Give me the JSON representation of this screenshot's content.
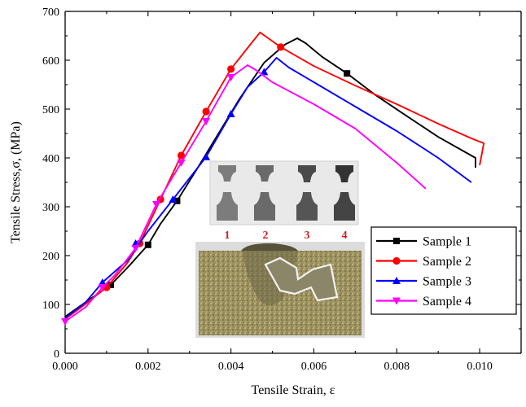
{
  "chart_data": {
    "type": "line",
    "xlabel": "Tensile Strain, ε",
    "ylabel": "Tensile Stress,σ, (MPa)",
    "xlim": [
      0.0,
      0.011
    ],
    "ylim": [
      0,
      700
    ],
    "x_ticks": [
      "0.000",
      "0.002",
      "0.004",
      "0.006",
      "0.008",
      "0.010"
    ],
    "x_tick_values": [
      0.0,
      0.002,
      0.004,
      0.006,
      0.008,
      0.01
    ],
    "y_ticks": [
      "0",
      "100",
      "200",
      "300",
      "400",
      "500",
      "600",
      "700"
    ],
    "y_tick_values": [
      0,
      100,
      200,
      300,
      400,
      500,
      600,
      700
    ],
    "grid": false,
    "legend_position": "lower-right",
    "series": [
      {
        "name": "Sample 1",
        "color": "#000000",
        "marker": "square",
        "points": [
          [
            0.0,
            75
          ],
          [
            0.0005,
            105
          ],
          [
            0.0011,
            140
          ],
          [
            0.0015,
            175
          ],
          [
            0.002,
            222
          ],
          [
            0.0023,
            265
          ],
          [
            0.0027,
            312
          ],
          [
            0.0032,
            380
          ],
          [
            0.0037,
            450
          ],
          [
            0.0042,
            520
          ],
          [
            0.0048,
            595
          ],
          [
            0.0053,
            632
          ],
          [
            0.0056,
            645
          ],
          [
            0.0058,
            635
          ],
          [
            0.0062,
            607
          ],
          [
            0.0068,
            573
          ],
          [
            0.0075,
            528
          ],
          [
            0.0082,
            488
          ],
          [
            0.009,
            443
          ],
          [
            0.0099,
            400
          ],
          [
            0.0099,
            380
          ]
        ],
        "markers": [
          [
            0.0011,
            140
          ],
          [
            0.002,
            222
          ],
          [
            0.0027,
            312
          ],
          [
            0.0068,
            573
          ]
        ]
      },
      {
        "name": "Sample 2",
        "color": "#ff0000",
        "marker": "circle",
        "points": [
          [
            0.0,
            70
          ],
          [
            0.0004,
            95
          ],
          [
            0.001,
            135
          ],
          [
            0.0015,
            185
          ],
          [
            0.0018,
            225
          ],
          [
            0.0023,
            315
          ],
          [
            0.0028,
            405
          ],
          [
            0.0034,
            495
          ],
          [
            0.004,
            582
          ],
          [
            0.0044,
            625
          ],
          [
            0.0047,
            657
          ],
          [
            0.0049,
            645
          ],
          [
            0.0052,
            627
          ],
          [
            0.006,
            588
          ],
          [
            0.007,
            548
          ],
          [
            0.008,
            510
          ],
          [
            0.009,
            470
          ],
          [
            0.0098,
            440
          ],
          [
            0.0101,
            430
          ],
          [
            0.01,
            385
          ]
        ],
        "markers": [
          [
            0.001,
            135
          ],
          [
            0.0018,
            225
          ],
          [
            0.0023,
            315
          ],
          [
            0.0028,
            405
          ],
          [
            0.0034,
            495
          ],
          [
            0.004,
            582
          ],
          [
            0.0052,
            627
          ]
        ]
      },
      {
        "name": "Sample 3",
        "color": "#0000ff",
        "marker": "triangle-up",
        "points": [
          [
            0.0,
            72
          ],
          [
            0.0005,
            105
          ],
          [
            0.0009,
            145
          ],
          [
            0.0015,
            190
          ],
          [
            0.002,
            250
          ],
          [
            0.0026,
            315
          ],
          [
            0.0034,
            402
          ],
          [
            0.004,
            490
          ],
          [
            0.0044,
            545
          ],
          [
            0.0048,
            576
          ],
          [
            0.0051,
            605
          ],
          [
            0.0054,
            585
          ],
          [
            0.006,
            555
          ],
          [
            0.007,
            505
          ],
          [
            0.008,
            455
          ],
          [
            0.009,
            400
          ],
          [
            0.0098,
            350
          ]
        ],
        "markers": [
          [
            0.0009,
            145
          ],
          [
            0.0017,
            225
          ],
          [
            0.0026,
            315
          ],
          [
            0.0034,
            402
          ],
          [
            0.004,
            490
          ],
          [
            0.0048,
            576
          ]
        ]
      },
      {
        "name": "Sample 4",
        "color": "#ff00ff",
        "marker": "triangle-down",
        "points": [
          [
            0.0,
            65
          ],
          [
            0.0005,
            95
          ],
          [
            0.0009,
            135
          ],
          [
            0.0012,
            160
          ],
          [
            0.0017,
            215
          ],
          [
            0.0022,
            305
          ],
          [
            0.0028,
            390
          ],
          [
            0.0034,
            475
          ],
          [
            0.004,
            565
          ],
          [
            0.0044,
            590
          ],
          [
            0.0046,
            580
          ],
          [
            0.005,
            555
          ],
          [
            0.006,
            510
          ],
          [
            0.007,
            460
          ],
          [
            0.008,
            390
          ],
          [
            0.0087,
            337
          ]
        ],
        "markers": [
          [
            0.0,
            65
          ],
          [
            0.0009,
            135
          ],
          [
            0.0017,
            215
          ],
          [
            0.0022,
            305
          ],
          [
            0.0028,
            390
          ],
          [
            0.0034,
            475
          ],
          [
            0.004,
            565
          ]
        ]
      }
    ]
  },
  "inset": {
    "sample_numbers": [
      "1",
      "2",
      "3",
      "4"
    ]
  }
}
